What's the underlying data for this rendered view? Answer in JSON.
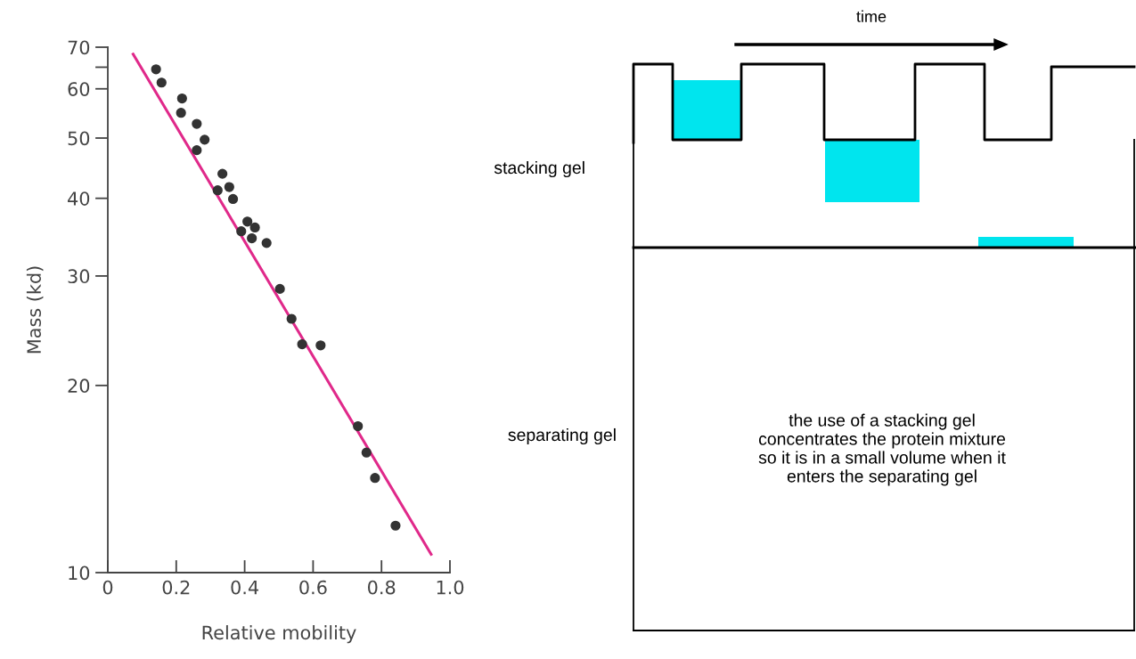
{
  "chart_data": [
    {
      "type": "scatter",
      "xlabel": "Relative mobility",
      "ylabel": "Mass (kd)",
      "log": "y",
      "grid": false,
      "marker": "circle",
      "xlim": [
        0,
        1.0
      ],
      "ylim": [
        10,
        70
      ],
      "xticks": [
        0,
        {
          "value": 0.2,
          "label": "0.2"
        },
        {
          "value": 0.4,
          "label": "0.4"
        },
        {
          "value": 0.6,
          "label": "0.6"
        },
        {
          "value": 0.8,
          "label": "0.8"
        },
        {
          "value": 1.0,
          "label": "1.0"
        }
      ],
      "yticks": [
        10,
        20,
        30,
        40,
        50,
        60,
        {
          "value": 65,
          "label": null
        },
        70
      ],
      "series": [
        {
          "type": "scatter",
          "color": "#333333",
          "x": [
            0.141,
            0.157,
            0.217,
            0.214,
            0.26,
            0.283,
            0.26,
            0.335,
            0.321,
            0.355,
            0.366,
            0.408,
            0.43,
            0.39,
            0.421,
            0.464,
            0.503,
            0.537,
            0.568,
            0.622,
            0.731,
            0.756,
            0.781,
            0.841
          ],
          "values": [
            64.5,
            61.4,
            57.9,
            54.9,
            52.7,
            49.7,
            47.8,
            43.8,
            41.2,
            41.7,
            39.9,
            36.7,
            35.9,
            35.4,
            34.5,
            33.9,
            28.6,
            25.6,
            23.3,
            23.2,
            17.2,
            15.6,
            14.2,
            11.9
          ]
        },
        {
          "type": "line",
          "color": "#e0298a",
          "x": [
            0.074,
            0.945
          ],
          "values": [
            68.2,
            10.7
          ],
          "marker": "none"
        }
      ]
    },
    {
      "type": "other",
      "annotations": [
        "time",
        "stacking gel",
        "separating gel",
        "the use of a stacking gel concentrates the protein mixture so it is in a small volume when it enters the separating gel"
      ]
    }
  ]
}
